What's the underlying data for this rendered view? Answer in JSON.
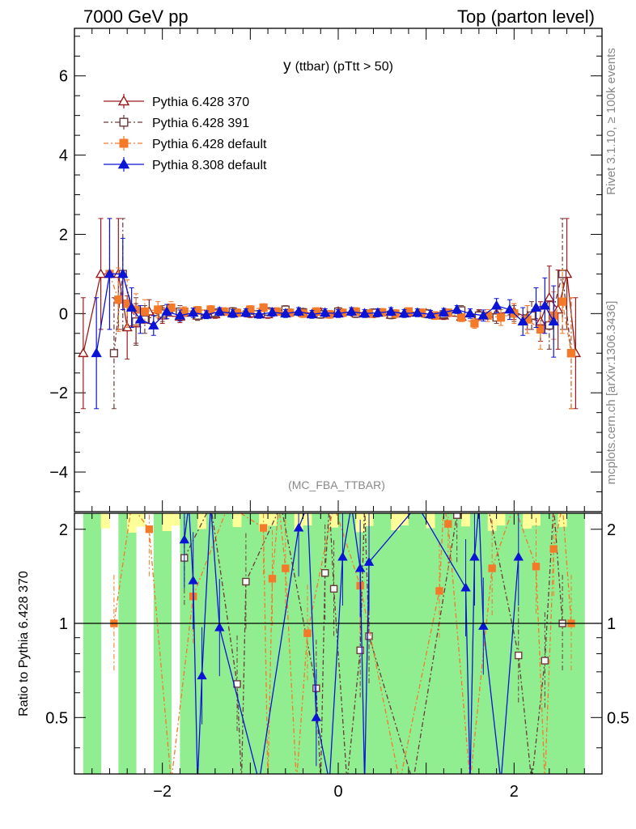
{
  "header": {
    "left": "7000 GeV pp",
    "right": "Top (parton level)"
  },
  "side_labels": {
    "rivet": "Rivet 3.1.10, ≥ 100k events",
    "mcplots": "mcplots.cern.ch [arXiv:1306.3436]"
  },
  "chart_data": [
    {
      "type": "line",
      "title": "y (ttbar) (pTtt > 50)",
      "title_main": "y",
      "title_sub": "(ttbar) (pTtt > 50)",
      "annotation": "(MC_FBA_TTBAR)",
      "xlim": [
        -3.0,
        3.0
      ],
      "ylim": [
        -5.0,
        7.2
      ],
      "yticks": [
        "−4",
        "−2",
        "0",
        "2",
        "4",
        "6"
      ],
      "ytick_values": [
        -4,
        -2,
        0,
        2,
        4,
        6
      ],
      "legend": "top-left",
      "series": [
        {
          "name": "Pythia 6.428 370",
          "color": "#9a1a1a",
          "marker": "open-triangle",
          "dash": "",
          "x": [
            -2.9,
            -2.7,
            -2.5,
            -2.4,
            -2.3,
            -2.15,
            -2.0,
            -1.8,
            -1.6,
            -1.4,
            -1.2,
            -1.0,
            -0.8,
            -0.6,
            -0.4,
            -0.2,
            0.0,
            0.2,
            0.4,
            0.6,
            0.8,
            1.0,
            1.2,
            1.4,
            1.6,
            1.8,
            2.0,
            2.15,
            2.3,
            2.4,
            2.5,
            2.6,
            2.7
          ],
          "y": [
            -1.0,
            1.0,
            1.0,
            -0.35,
            -0.25,
            0.05,
            -0.05,
            -0.08,
            -0.05,
            -0.02,
            0.03,
            0.0,
            -0.02,
            0.05,
            0.02,
            0.03,
            0.05,
            0.02,
            0.0,
            -0.03,
            0.02,
            0.0,
            -0.05,
            -0.08,
            -0.02,
            0.0,
            0.05,
            -0.1,
            -0.2,
            0.4,
            0.1,
            1.0,
            -1.0
          ],
          "err": [
            1.4,
            1.4,
            1.4,
            0.8,
            0.5,
            0.3,
            0.2,
            0.15,
            0.12,
            0.1,
            0.1,
            0.1,
            0.1,
            0.1,
            0.1,
            0.1,
            0.1,
            0.1,
            0.1,
            0.1,
            0.1,
            0.1,
            0.1,
            0.12,
            0.12,
            0.15,
            0.2,
            0.3,
            0.5,
            0.8,
            1.0,
            1.4,
            1.4
          ]
        },
        {
          "name": "Pythia 6.428 391",
          "color": "#6b3a3a",
          "marker": "open-square",
          "dash": "6,3,2,3",
          "x": [
            -2.55,
            -2.45,
            -2.3,
            -2.2,
            -2.0,
            -1.8,
            -1.6,
            -1.4,
            -1.2,
            -1.0,
            -0.8,
            -0.6,
            -0.4,
            -0.2,
            0.0,
            0.2,
            0.4,
            0.6,
            0.8,
            1.0,
            1.2,
            1.4,
            1.6,
            1.8,
            2.0,
            2.2,
            2.4,
            2.55,
            2.65
          ],
          "y": [
            -1.0,
            1.0,
            -0.2,
            -0.15,
            0.0,
            0.05,
            -0.05,
            0.02,
            0.05,
            0.08,
            0.05,
            0.1,
            0.03,
            -0.02,
            0.05,
            0.0,
            0.02,
            -0.03,
            0.05,
            0.0,
            -0.02,
            0.08,
            -0.05,
            -0.1,
            0.0,
            -0.05,
            -0.3,
            1.0,
            -1.0
          ],
          "err": [
            1.4,
            1.4,
            0.6,
            0.35,
            0.2,
            0.15,
            0.12,
            0.1,
            0.1,
            0.1,
            0.1,
            0.1,
            0.1,
            0.1,
            0.1,
            0.1,
            0.1,
            0.1,
            0.1,
            0.1,
            0.1,
            0.12,
            0.12,
            0.15,
            0.2,
            0.35,
            0.6,
            1.4,
            1.4
          ]
        },
        {
          "name": "Pythia 6.428 default",
          "color": "#f47a2a",
          "marker": "filled-square",
          "dash": "6,3,2,3",
          "x": [
            -2.6,
            -2.5,
            -2.4,
            -2.3,
            -2.2,
            -2.05,
            -1.9,
            -1.75,
            -1.6,
            -1.45,
            -1.3,
            -1.15,
            -1.0,
            -0.85,
            -0.7,
            -0.55,
            -0.4,
            -0.25,
            -0.1,
            0.05,
            0.2,
            0.35,
            0.5,
            0.65,
            0.8,
            0.95,
            1.1,
            1.25,
            1.4,
            1.55,
            1.7,
            1.85,
            2.0,
            2.15,
            2.3,
            2.45,
            2.55,
            2.65
          ],
          "y": [
            1.0,
            0.35,
            0.25,
            0.1,
            0.05,
            0.1,
            0.15,
            0.05,
            0.08,
            0.1,
            0.05,
            0.02,
            0.1,
            0.15,
            0.05,
            0.02,
            0.0,
            0.05,
            -0.02,
            0.02,
            0.05,
            0.0,
            0.03,
            0.0,
            0.05,
            0.02,
            -0.05,
            0.02,
            -0.1,
            -0.25,
            -0.05,
            -0.1,
            0.0,
            -0.15,
            -0.4,
            -0.05,
            0.3,
            -1.0
          ],
          "err": [
            1.4,
            0.8,
            0.6,
            0.4,
            0.3,
            0.2,
            0.15,
            0.12,
            0.1,
            0.1,
            0.1,
            0.1,
            0.1,
            0.1,
            0.1,
            0.1,
            0.1,
            0.1,
            0.1,
            0.1,
            0.1,
            0.1,
            0.1,
            0.1,
            0.1,
            0.1,
            0.1,
            0.1,
            0.1,
            0.12,
            0.15,
            0.2,
            0.25,
            0.35,
            0.5,
            0.6,
            0.8,
            1.4
          ]
        },
        {
          "name": "Pythia 8.308 default",
          "color": "#0a14d6",
          "marker": "filled-triangle",
          "dash": "",
          "x": [
            -2.75,
            -2.6,
            -2.45,
            -2.35,
            -2.25,
            -2.1,
            -1.95,
            -1.8,
            -1.65,
            -1.5,
            -1.35,
            -1.2,
            -1.05,
            -0.9,
            -0.75,
            -0.6,
            -0.45,
            -0.3,
            -0.15,
            0.0,
            0.15,
            0.3,
            0.45,
            0.6,
            0.75,
            0.9,
            1.05,
            1.2,
            1.35,
            1.5,
            1.65,
            1.8,
            1.95,
            2.1,
            2.25,
            2.35,
            2.45
          ],
          "y": [
            -1.0,
            1.0,
            1.0,
            0.15,
            -0.15,
            -0.3,
            0.05,
            -0.05,
            0.02,
            -0.03,
            0.05,
            0.0,
            0.02,
            -0.02,
            0.03,
            0.0,
            0.05,
            -0.02,
            0.02,
            0.0,
            0.05,
            0.0,
            0.02,
            0.05,
            0.0,
            0.02,
            -0.02,
            0.03,
            0.1,
            0.0,
            -0.05,
            0.2,
            0.1,
            -0.2,
            0.15,
            0.2,
            -0.2
          ],
          "err": [
            1.4,
            1.4,
            0.9,
            0.5,
            0.35,
            0.25,
            0.18,
            0.14,
            0.12,
            0.1,
            0.1,
            0.1,
            0.1,
            0.1,
            0.1,
            0.1,
            0.1,
            0.1,
            0.1,
            0.1,
            0.1,
            0.1,
            0.1,
            0.1,
            0.1,
            0.1,
            0.1,
            0.1,
            0.1,
            0.12,
            0.14,
            0.18,
            0.25,
            0.35,
            0.5,
            0.7,
            0.9
          ]
        }
      ]
    },
    {
      "type": "line",
      "ylabel": "Ratio to Pythia 6.428 370",
      "xlim": [
        -3.0,
        3.0
      ],
      "ylim": [
        0.33,
        2.25
      ],
      "xticks": [
        "−2",
        "0",
        "2"
      ],
      "xtick_values": [
        -2,
        0,
        2
      ],
      "yticks": [
        "0.5",
        "1",
        "2"
      ],
      "ytick_values": [
        0.5,
        1,
        2
      ],
      "reference_line": 1,
      "band_colors": {
        "inner": "#90ee90",
        "outer": "#ffff99"
      },
      "series": [
        {
          "name": "Pythia 6.428 391",
          "color": "#6b3a3a",
          "marker": "open-square",
          "dash": "6,3,2,3",
          "x": [
            -1.75,
            -1.15,
            -1.05,
            -0.25,
            -0.15,
            -0.05,
            0.25,
            0.35,
            1.35,
            2.05,
            2.35,
            2.55
          ],
          "y": [
            1.62,
            0.64,
            1.36,
            0.62,
            1.45,
            1.29,
            0.82,
            0.91,
            2.22,
            0.79,
            0.76,
            1.0
          ]
        },
        {
          "name": "Pythia 6.428 default",
          "color": "#f47a2a",
          "marker": "filled-square",
          "dash": "6,3,2,3",
          "x": [
            -2.55,
            -2.15,
            -1.65,
            -0.85,
            -0.75,
            -0.6,
            -0.35,
            0.25,
            1.15,
            1.25,
            1.75,
            2.25,
            2.45,
            2.65
          ],
          "y": [
            1.0,
            2.0,
            1.22,
            2.02,
            1.39,
            1.5,
            0.93,
            1.32,
            1.27,
            2.08,
            1.5,
            1.52,
            1.73,
            1.0
          ]
        },
        {
          "name": "Pythia 8.308 default",
          "color": "#0a14d6",
          "marker": "filled-triangle",
          "dash": "",
          "x": [
            -1.75,
            -1.65,
            -1.55,
            -1.35,
            -0.45,
            -0.25,
            0.05,
            0.25,
            0.35,
            1.45,
            1.55,
            1.65,
            2.05
          ],
          "y": [
            1.85,
            1.37,
            0.68,
            0.97,
            2.02,
            0.5,
            1.63,
            1.5,
            1.57,
            1.3,
            1.63,
            0.98,
            1.63
          ]
        }
      ]
    }
  ]
}
